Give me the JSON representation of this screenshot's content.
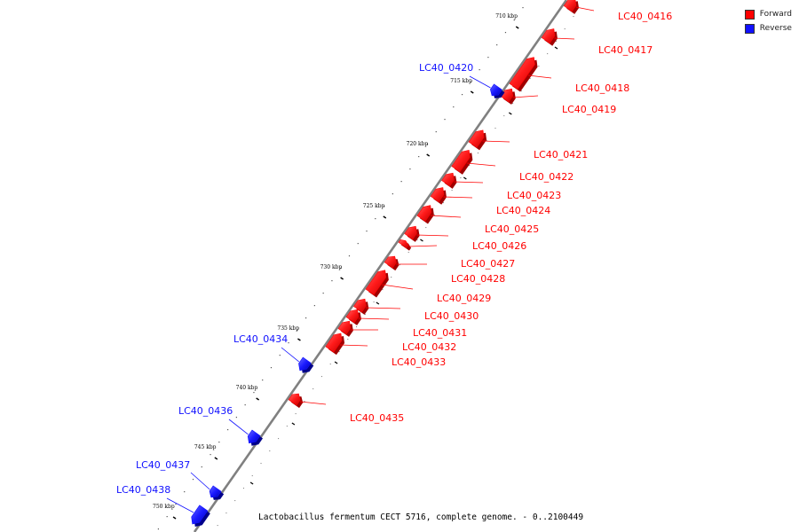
{
  "colors": {
    "forward": "#ff0000",
    "reverse": "#1010ff",
    "backbone": "#808080"
  },
  "legend": {
    "forward_label": "Forward",
    "reverse_label": "Reverse"
  },
  "caption": "Lactobacillus fermentum CECT 5716, complete genome. - 0..2100449",
  "ticks": [
    {
      "label": "710 kbp"
    },
    {
      "label": "715 kbp"
    },
    {
      "label": "720 kbp"
    },
    {
      "label": "725 kbp"
    },
    {
      "label": "730 kbp"
    },
    {
      "label": "735 kbp"
    },
    {
      "label": "740 kbp"
    },
    {
      "label": "745 kbp"
    },
    {
      "label": "750 kbp"
    }
  ],
  "genes": [
    {
      "name": "LC40_0416",
      "strand": "forward"
    },
    {
      "name": "LC40_0417",
      "strand": "forward"
    },
    {
      "name": "LC40_0418",
      "strand": "forward"
    },
    {
      "name": "LC40_0419",
      "strand": "forward"
    },
    {
      "name": "LC40_0420",
      "strand": "reverse"
    },
    {
      "name": "LC40_0421",
      "strand": "forward"
    },
    {
      "name": "LC40_0422",
      "strand": "forward"
    },
    {
      "name": "LC40_0423",
      "strand": "forward"
    },
    {
      "name": "LC40_0424",
      "strand": "forward"
    },
    {
      "name": "LC40_0425",
      "strand": "forward"
    },
    {
      "name": "LC40_0426",
      "strand": "forward"
    },
    {
      "name": "LC40_0427",
      "strand": "forward"
    },
    {
      "name": "LC40_0428",
      "strand": "forward"
    },
    {
      "name": "LC40_0429",
      "strand": "forward"
    },
    {
      "name": "LC40_0430",
      "strand": "forward"
    },
    {
      "name": "LC40_0431",
      "strand": "forward"
    },
    {
      "name": "LC40_0432",
      "strand": "forward"
    },
    {
      "name": "LC40_0433",
      "strand": "forward"
    },
    {
      "name": "LC40_0434",
      "strand": "reverse"
    },
    {
      "name": "LC40_0435",
      "strand": "forward"
    },
    {
      "name": "LC40_0436",
      "strand": "reverse"
    },
    {
      "name": "LC40_0437",
      "strand": "reverse"
    },
    {
      "name": "LC40_0438",
      "strand": "reverse"
    }
  ]
}
